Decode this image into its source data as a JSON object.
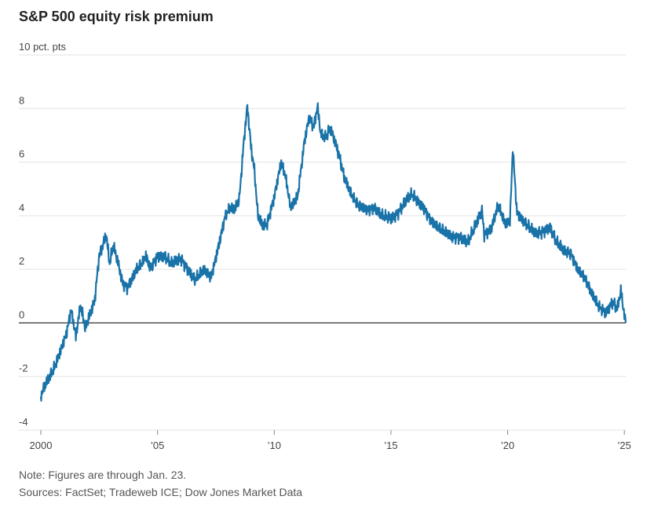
{
  "chart_data": {
    "type": "line",
    "title": "S&P 500 equity risk premium",
    "ylabel": "pct. pts",
    "ylim": [
      -4,
      10
    ],
    "yticks": [
      -4,
      -2,
      0,
      2,
      4,
      6,
      8,
      10
    ],
    "ytick_labels": [
      "-4",
      "-2",
      "0",
      "2",
      "4",
      "6",
      "8",
      "10 pct. pts"
    ],
    "xlim": [
      2000,
      2025.06
    ],
    "xticks": [
      2000,
      2005,
      2010,
      2015,
      2020,
      2025
    ],
    "xtick_labels": [
      "2000",
      "’05",
      "’10",
      "’15",
      "’20",
      "’25"
    ],
    "series": [
      {
        "name": "Equity risk premium",
        "color": "#1a73a8",
        "x": [
          2000.0,
          2000.2,
          2000.4,
          2000.6,
          2000.9,
          2001.1,
          2001.3,
          2001.5,
          2001.7,
          2001.9,
          2002.1,
          2002.3,
          2002.5,
          2002.65,
          2002.8,
          2002.95,
          2003.1,
          2003.3,
          2003.5,
          2003.7,
          2003.9,
          2004.1,
          2004.3,
          2004.5,
          2004.7,
          2005.0,
          2005.3,
          2005.6,
          2006.0,
          2006.3,
          2006.6,
          2007.0,
          2007.3,
          2007.6,
          2007.9,
          2008.1,
          2008.3,
          2008.5,
          2008.7,
          2008.85,
          2009.0,
          2009.15,
          2009.3,
          2009.5,
          2009.7,
          2010.0,
          2010.3,
          2010.5,
          2010.7,
          2011.0,
          2011.3,
          2011.5,
          2011.7,
          2011.85,
          2012.0,
          2012.2,
          2012.4,
          2012.6,
          2012.8,
          2013.0,
          2013.3,
          2013.6,
          2014.0,
          2014.3,
          2014.6,
          2015.0,
          2015.3,
          2015.6,
          2015.9,
          2016.1,
          2016.4,
          2016.7,
          2017.0,
          2017.3,
          2017.6,
          2018.0,
          2018.3,
          2018.6,
          2018.9,
          2019.0,
          2019.3,
          2019.6,
          2019.9,
          2020.1,
          2020.22,
          2020.4,
          2020.6,
          2020.9,
          2021.2,
          2021.5,
          2021.8,
          2022.1,
          2022.4,
          2022.7,
          2023.0,
          2023.3,
          2023.6,
          2023.9,
          2024.2,
          2024.5,
          2024.7,
          2024.85,
          2025.0,
          2025.06
        ],
        "values": [
          -2.7,
          -2.3,
          -2.0,
          -1.6,
          -0.9,
          -0.4,
          0.5,
          -0.5,
          0.7,
          -0.2,
          0.3,
          0.8,
          2.5,
          2.9,
          3.3,
          2.2,
          2.9,
          2.3,
          1.5,
          1.3,
          1.6,
          2.0,
          2.2,
          2.5,
          2.0,
          2.5,
          2.5,
          2.2,
          2.4,
          2.0,
          1.6,
          2.0,
          1.7,
          2.8,
          4.0,
          4.3,
          4.2,
          4.6,
          6.8,
          8.1,
          6.6,
          5.7,
          4.0,
          3.6,
          3.7,
          4.7,
          6.0,
          5.4,
          4.3,
          4.7,
          6.8,
          7.7,
          7.3,
          8.1,
          7.0,
          6.9,
          7.3,
          6.8,
          6.2,
          5.4,
          4.8,
          4.4,
          4.2,
          4.3,
          4.0,
          3.9,
          4.1,
          4.5,
          4.8,
          4.6,
          4.3,
          3.8,
          3.6,
          3.4,
          3.2,
          3.2,
          3.0,
          3.6,
          4.2,
          3.3,
          3.5,
          4.4,
          3.7,
          3.8,
          6.5,
          4.1,
          3.9,
          3.6,
          3.3,
          3.4,
          3.6,
          3.0,
          2.7,
          2.6,
          2.0,
          1.7,
          1.1,
          0.6,
          0.4,
          0.8,
          0.5,
          1.2,
          0.3,
          0.0
        ]
      }
    ],
    "notes": [
      "Note: Figures are through Jan. 23.",
      "Sources: FactSet; Tradeweb ICE; Dow Jones Market Data"
    ]
  }
}
